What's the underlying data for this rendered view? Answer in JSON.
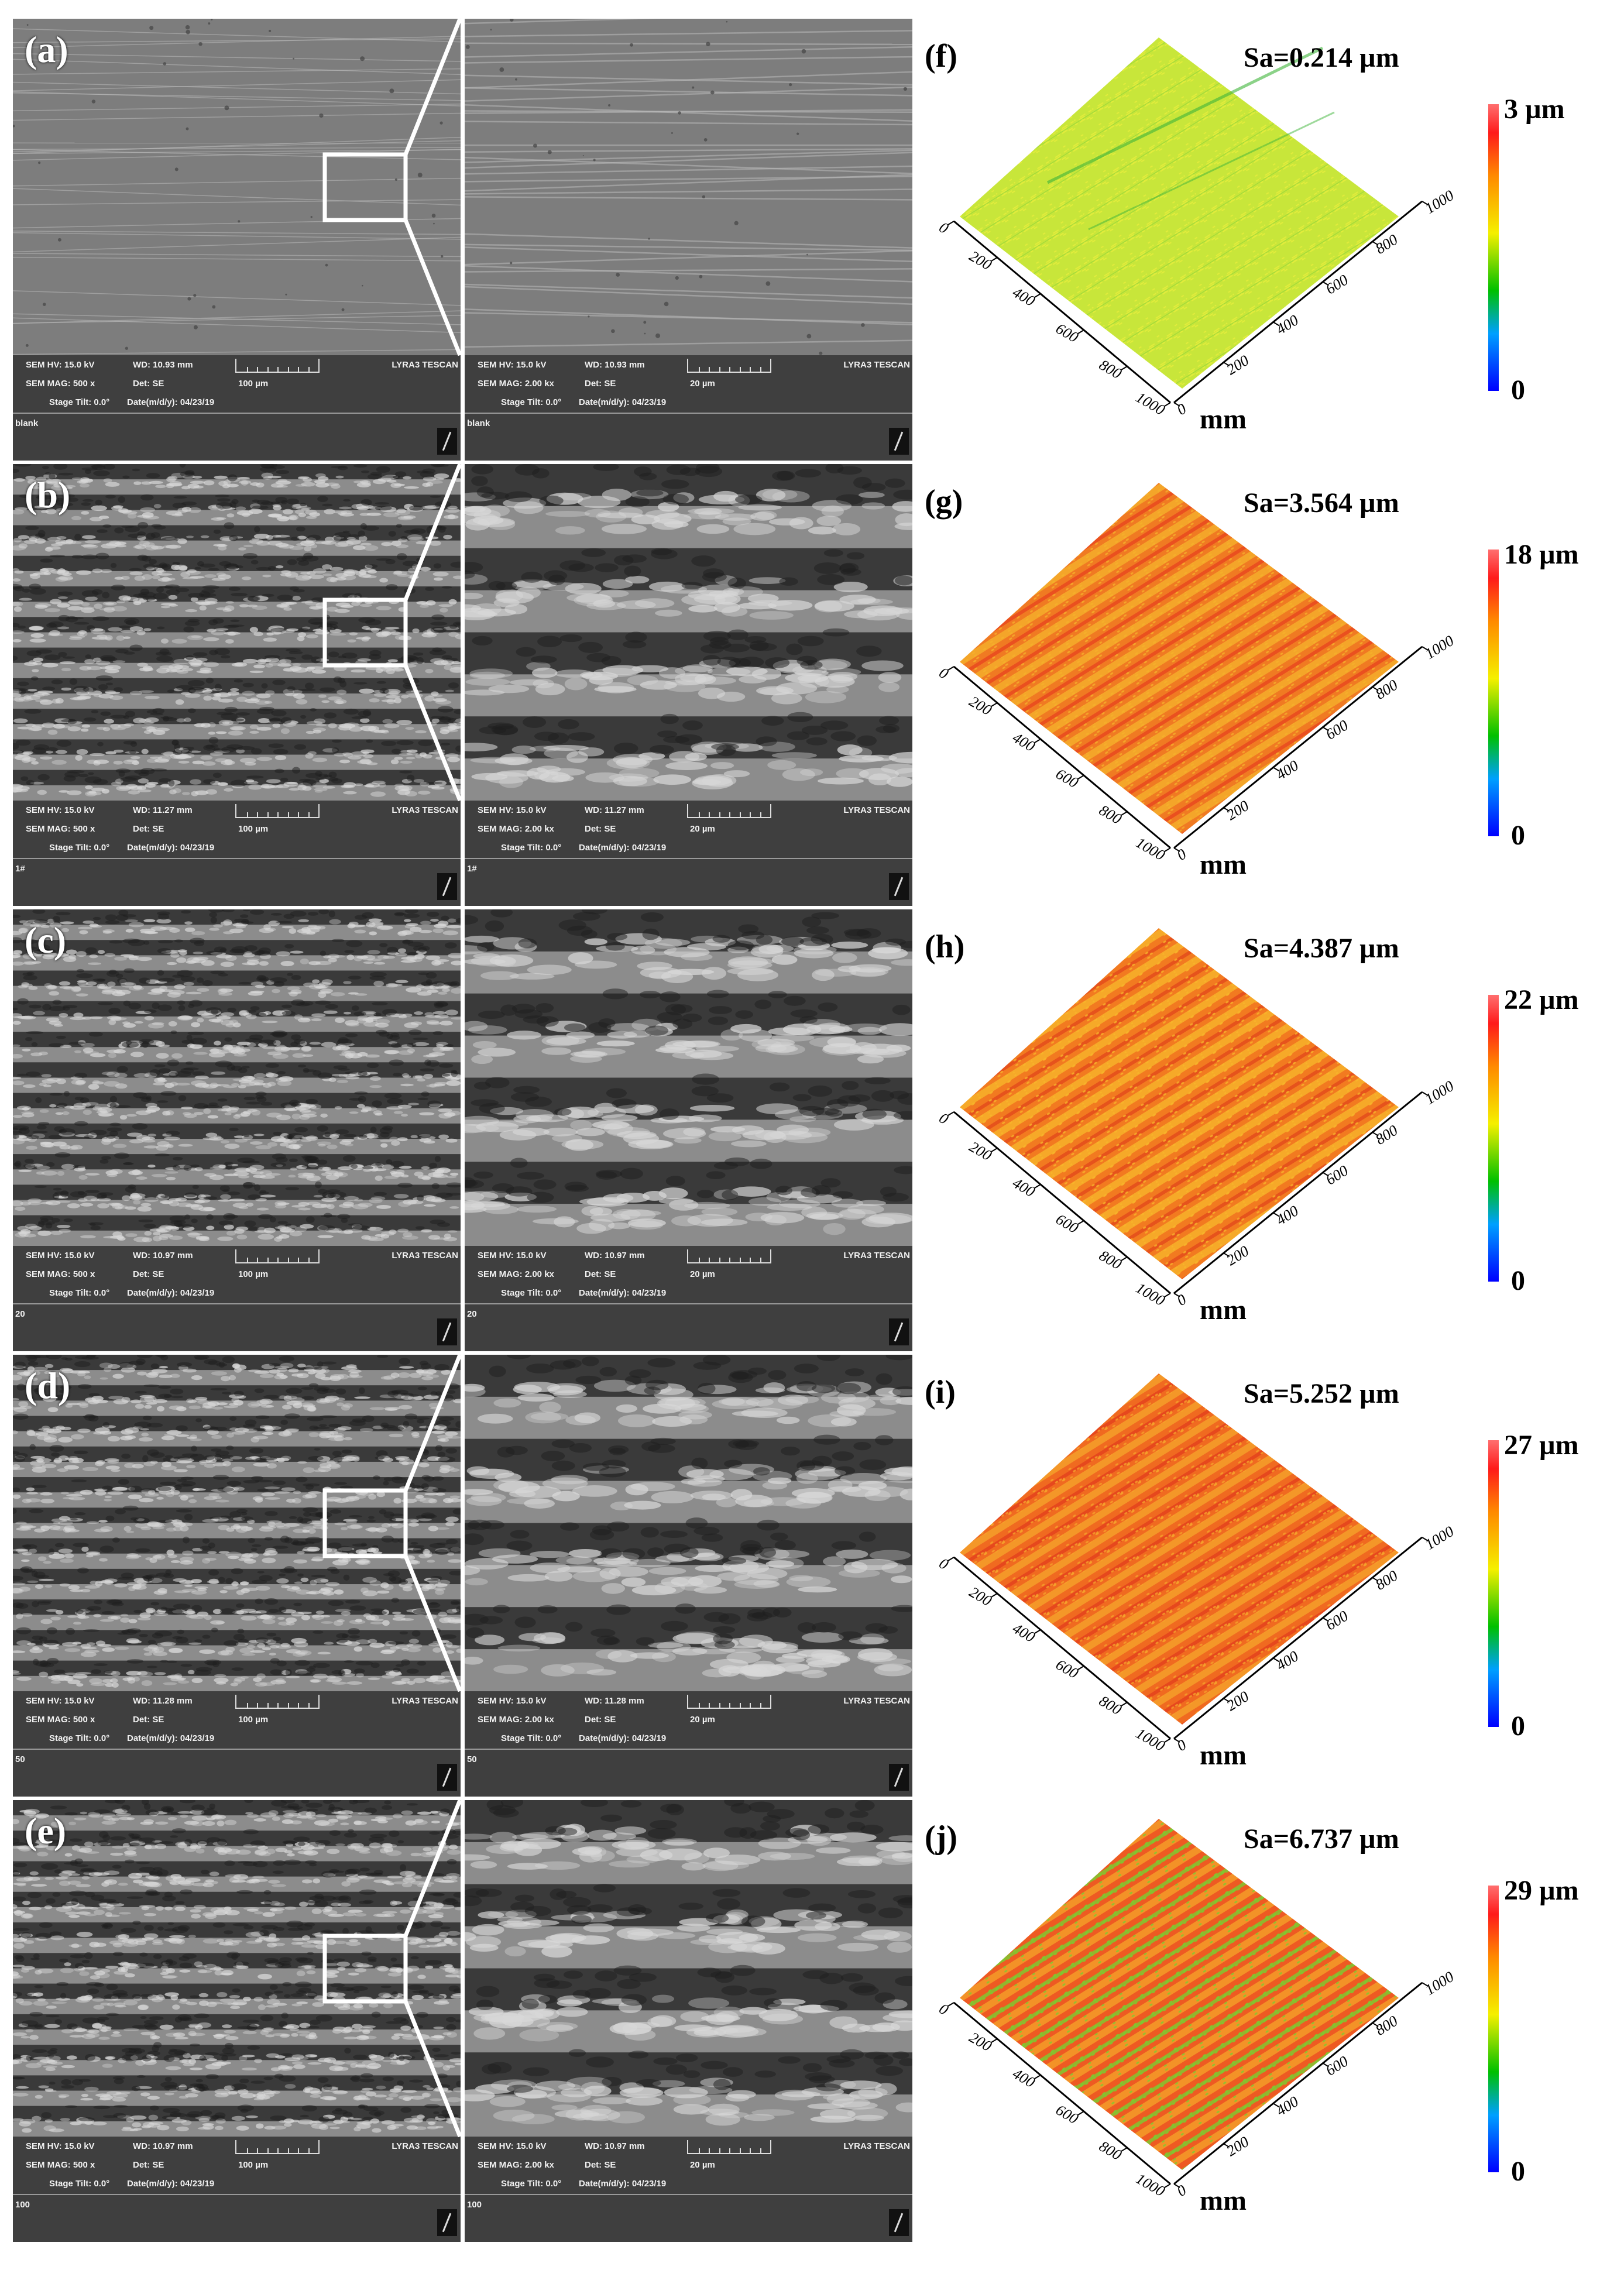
{
  "panels": [
    {
      "sem_label": "(a)",
      "left": {
        "hv": "SEM HV: 15.0 kV",
        "wd": "WD: 10.93 mm",
        "mag": "SEM MAG: 500 x",
        "det": "Det: SE",
        "scale": "100 µm",
        "tilt": "Stage Tilt: 0.0°",
        "date": "Date(m/d/y): 04/23/19",
        "maker": "LYRA3 TESCAN",
        "sample": "blank"
      },
      "right": {
        "hv": "SEM HV: 15.0 kV",
        "wd": "WD: 10.93 mm",
        "mag": "SEM MAG: 2.00 kx",
        "det": "Det: SE",
        "scale": "20 µm",
        "tilt": "Stage Tilt: 0.0°",
        "date": "Date(m/d/y): 04/23/19",
        "maker": "LYRA3 TESCAN",
        "sample": "blank"
      },
      "plot_label": "(f)",
      "sa": "Sa=0.214 µm",
      "cb_max": "3 µm",
      "cb_min": "0",
      "texture": "smooth",
      "colors": [
        "#c8e63a",
        "#e8ee3c",
        "#7fcf3a"
      ]
    },
    {
      "sem_label": "(b)",
      "left": {
        "hv": "SEM HV: 15.0 kV",
        "wd": "WD: 11.27 mm",
        "mag": "SEM MAG: 500 x",
        "det": "Det: SE",
        "scale": "100 µm",
        "tilt": "Stage Tilt: 0.0°",
        "date": "Date(m/d/y): 04/23/19",
        "maker": "LYRA3 TESCAN",
        "sample": "1#"
      },
      "right": {
        "hv": "SEM HV: 15.0 kV",
        "wd": "WD: 11.27 mm",
        "mag": "SEM MAG: 2.00 kx",
        "det": "Det: SE",
        "scale": "20 µm",
        "tilt": "Stage Tilt: 0.0°",
        "date": "Date(m/d/y): 04/23/19",
        "maker": "LYRA3 TESCAN",
        "sample": "1#"
      },
      "plot_label": "(g)",
      "sa": "Sa=3.564 µm",
      "cb_max": "18 µm",
      "cb_min": "0",
      "texture": "grooved",
      "colors": [
        "#f07a22",
        "#f5b02a",
        "#e8461e"
      ]
    },
    {
      "sem_label": "(c)",
      "left": {
        "hv": "SEM HV: 15.0 kV",
        "wd": "WD: 10.97 mm",
        "mag": "SEM MAG: 500 x",
        "det": "Det: SE",
        "scale": "100 µm",
        "tilt": "Stage Tilt: 0.0°",
        "date": "Date(m/d/y): 04/23/19",
        "maker": "LYRA3 TESCAN",
        "sample": "20"
      },
      "right": {
        "hv": "SEM HV: 15.0 kV",
        "wd": "WD: 10.97 mm",
        "mag": "SEM MAG: 2.00 kx",
        "det": "Det: SE",
        "scale": "20 µm",
        "tilt": "Stage Tilt: 0.0°",
        "date": "Date(m/d/y): 04/23/19",
        "maker": "LYRA3 TESCAN",
        "sample": "20"
      },
      "plot_label": "(h)",
      "sa": "Sa=4.387 µm",
      "cb_max": "22 µm",
      "cb_min": "0",
      "texture": "grooved",
      "colors": [
        "#f27a20",
        "#f7b52a",
        "#e44a1c"
      ]
    },
    {
      "sem_label": "(d)",
      "left": {
        "hv": "SEM HV: 15.0 kV",
        "wd": "WD: 11.28 mm",
        "mag": "SEM MAG: 500 x",
        "det": "Det: SE",
        "scale": "100 µm",
        "tilt": "Stage Tilt: 0.0°",
        "date": "Date(m/d/y): 04/23/19",
        "maker": "LYRA3 TESCAN",
        "sample": "50"
      },
      "right": {
        "hv": "SEM HV: 15.0 kV",
        "wd": "WD: 11.28 mm",
        "mag": "SEM MAG: 2.00 kx",
        "det": "Det: SE",
        "scale": "20 µm",
        "tilt": "Stage Tilt: 0.0°",
        "date": "Date(m/d/y): 04/23/19",
        "maker": "LYRA3 TESCAN",
        "sample": "50"
      },
      "plot_label": "(i)",
      "sa": "Sa=5.252 µm",
      "cb_max": "27 µm",
      "cb_min": "0",
      "texture": "grooved",
      "colors": [
        "#f06a20",
        "#f5a32a",
        "#e3401d"
      ]
    },
    {
      "sem_label": "(e)",
      "left": {
        "hv": "SEM HV: 15.0 kV",
        "wd": "WD: 10.97 mm",
        "mag": "SEM MAG: 500 x",
        "det": "Det: SE",
        "scale": "100 µm",
        "tilt": "Stage Tilt: 0.0°",
        "date": "Date(m/d/y): 04/23/19",
        "maker": "LYRA3 TESCAN",
        "sample": "100"
      },
      "right": {
        "hv": "SEM HV: 15.0 kV",
        "wd": "WD: 10.97 mm",
        "mag": "SEM MAG: 2.00 kx",
        "det": "Det: SE",
        "scale": "20 µm",
        "tilt": "Stage Tilt: 0.0°",
        "date": "Date(m/d/y): 04/23/19",
        "maker": "LYRA3 TESCAN",
        "sample": "100"
      },
      "plot_label": "(j)",
      "sa": "Sa=6.737 µm",
      "cb_max": "29 µm",
      "cb_min": "0",
      "texture": "grooved",
      "colors": [
        "#ee5a22",
        "#f4a028",
        "#7ccc30"
      ]
    }
  ],
  "axis": {
    "unit": "mm",
    "y_ticks": [
      "0",
      "200",
      "400",
      "600",
      "800",
      "1000"
    ],
    "x_ticks": [
      "0",
      "200",
      "400",
      "600",
      "800",
      "1000"
    ]
  }
}
